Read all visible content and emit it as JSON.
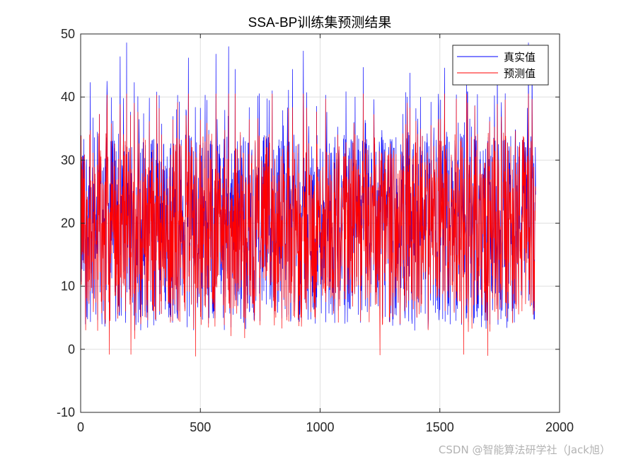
{
  "chart_data": {
    "type": "line",
    "title": "SSA-BP训练集预测结果",
    "xlabel": "",
    "ylabel": "",
    "xlim": [
      0,
      2000
    ],
    "ylim": [
      -10,
      50
    ],
    "x_ticks": [
      "0",
      "500",
      "1000",
      "1500",
      "2000"
    ],
    "y_ticks": [
      "-10",
      "0",
      "10",
      "20",
      "30",
      "40",
      "50"
    ],
    "grid": true,
    "legend_position": "top-right",
    "n_points": 1900,
    "x_start": 1,
    "series": [
      {
        "name": "真实值",
        "color": "#0000ff",
        "summary": {
          "min": 3,
          "max": 48.6,
          "typical_low": 5,
          "typical_high": 35
        },
        "peaks": [
          [
            40,
            42.3
          ],
          [
            110,
            42.5
          ],
          [
            165,
            46.4
          ],
          [
            192,
            48.6
          ],
          [
            224,
            42.3
          ],
          [
            318,
            40.8
          ],
          [
            450,
            46.2
          ],
          [
            565,
            46.8
          ],
          [
            618,
            48.0
          ],
          [
            645,
            44.4
          ],
          [
            800,
            41.0
          ],
          [
            868,
            41.1
          ],
          [
            885,
            44.4
          ],
          [
            930,
            47.3
          ],
          [
            1180,
            44.7
          ],
          [
            1375,
            43.8
          ],
          [
            1520,
            44.6
          ],
          [
            1612,
            44.7
          ],
          [
            1740,
            45.5
          ],
          [
            1870,
            48.6
          ],
          [
            1885,
            47.7
          ]
        ]
      },
      {
        "name": "预测值",
        "color": "#ff0000",
        "summary": {
          "min": -1.1,
          "max": 40.5,
          "typical_low": 2,
          "typical_high": 33
        },
        "troughs": [
          [
            120,
            -0.8
          ],
          [
            210,
            -0.8
          ],
          [
            480,
            -1.1
          ],
          [
            1250,
            -0.9
          ],
          [
            1600,
            -0.8
          ],
          [
            1700,
            -1.0
          ]
        ]
      }
    ]
  },
  "watermark": "CSDN @智能算法研学社（Jack旭）"
}
